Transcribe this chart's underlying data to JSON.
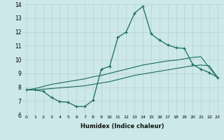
{
  "xlabel": "Humidex (Indice chaleur)",
  "bg_color": "#cce8e8",
  "grid_color": "#b8d4d4",
  "line_color": "#1a6b5a",
  "xlim": [
    -0.5,
    23.5
  ],
  "ylim": [
    6,
    14
  ],
  "xticks": [
    0,
    1,
    2,
    3,
    4,
    5,
    6,
    7,
    8,
    9,
    10,
    11,
    12,
    13,
    14,
    15,
    16,
    17,
    18,
    19,
    20,
    21,
    22,
    23
  ],
  "yticks": [
    6,
    7,
    8,
    9,
    10,
    11,
    12,
    13,
    14
  ],
  "line1_x": [
    0,
    1,
    2,
    3,
    4,
    5,
    6,
    7,
    8,
    9,
    10,
    11,
    12,
    13,
    14,
    15,
    16,
    17,
    18,
    19,
    20,
    21,
    22,
    23
  ],
  "line1_y": [
    7.8,
    7.8,
    7.7,
    7.25,
    6.95,
    6.9,
    6.6,
    6.6,
    7.05,
    9.3,
    9.5,
    11.6,
    12.0,
    13.35,
    13.85,
    11.85,
    11.4,
    11.05,
    10.85,
    10.8,
    9.65,
    9.3,
    9.05,
    8.7
  ],
  "line2_x": [
    0,
    1,
    2,
    3,
    4,
    5,
    6,
    7,
    8,
    9,
    10,
    11,
    12,
    13,
    14,
    15,
    16,
    17,
    18,
    19,
    20,
    21,
    22,
    23
  ],
  "line2_y": [
    7.8,
    7.9,
    8.05,
    8.2,
    8.3,
    8.4,
    8.5,
    8.6,
    8.75,
    8.85,
    9.0,
    9.15,
    9.3,
    9.45,
    9.6,
    9.7,
    9.8,
    9.9,
    9.95,
    10.05,
    10.15,
    10.2,
    9.4,
    8.7
  ],
  "line3_x": [
    0,
    1,
    2,
    3,
    4,
    5,
    6,
    7,
    8,
    9,
    10,
    11,
    12,
    13,
    14,
    15,
    16,
    17,
    18,
    19,
    20,
    21,
    22,
    23
  ],
  "line3_y": [
    7.8,
    7.8,
    7.85,
    7.9,
    7.95,
    8.0,
    8.05,
    8.1,
    8.2,
    8.3,
    8.4,
    8.55,
    8.7,
    8.85,
    8.95,
    9.05,
    9.15,
    9.25,
    9.35,
    9.45,
    9.55,
    9.6,
    9.55,
    8.7
  ]
}
